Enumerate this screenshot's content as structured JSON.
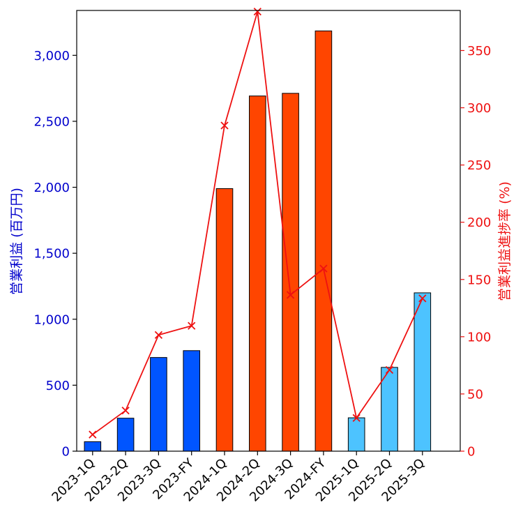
{
  "chart_data": {
    "type": "bar",
    "categories": [
      "2023-1Q",
      "2023-2Q",
      "2023-3Q",
      "2023-FY",
      "2024-1Q",
      "2024-2Q",
      "2024-3Q",
      "2024-FY",
      "2025-1Q",
      "2025-2Q",
      "2025-3Q"
    ],
    "series": [
      {
        "axis": "left",
        "type": "bar",
        "values": [
          72,
          250,
          710,
          762,
          1990,
          2692,
          2712,
          3185,
          253,
          635,
          1200
        ],
        "bar_colors": [
          "#0055ff",
          "#0055ff",
          "#0055ff",
          "#0055ff",
          "#ff4500",
          "#ff4500",
          "#ff4500",
          "#ff4500",
          "#4dc3ff",
          "#4dc3ff",
          "#4dc3ff"
        ]
      },
      {
        "axis": "right",
        "type": "line",
        "marker": "x",
        "color": "#ee1111",
        "values": [
          14.5,
          35.5,
          101.5,
          109.5,
          284.5,
          384,
          136.5,
          159.5,
          29,
          71,
          133.5
        ]
      }
    ],
    "ylabel": "営業利益 (百万円)",
    "y2label": "営業利益進捗率 (%)",
    "ylim": [
      0,
      3340
    ],
    "y2lim": [
      0,
      385
    ],
    "yticks": [
      0,
      500,
      1000,
      1500,
      2000,
      2500,
      3000
    ],
    "ytick_labels": [
      "0",
      "500",
      "1,000",
      "1,500",
      "2,000",
      "2,500",
      "3,000"
    ],
    "y2ticks": [
      0,
      50,
      100,
      150,
      200,
      250,
      300,
      350
    ],
    "y2tick_labels": [
      "0",
      "50",
      "100",
      "150",
      "200",
      "250",
      "300",
      "350"
    ],
    "left_axis_color": "#0000cc",
    "right_axis_color": "#ee1111",
    "grid": false,
    "legend": "none"
  }
}
